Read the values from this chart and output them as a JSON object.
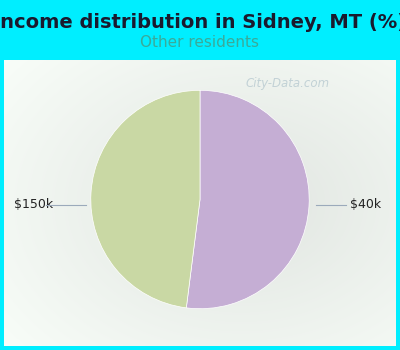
{
  "title": "Income distribution in Sidney, MT (%)",
  "subtitle": "Other residents",
  "title_color": "#1a1a2e",
  "subtitle_color": "#3aaa99",
  "background_color": "#00eeff",
  "plot_bg_color": "#e8f5ee",
  "slices": [
    {
      "label": "$40k",
      "value": 52,
      "color": "#c5aed4"
    },
    {
      "label": "$150k",
      "value": 48,
      "color": "#c9d8a4"
    }
  ],
  "label_color": "#222222",
  "label_fontsize": 9,
  "title_fontsize": 14,
  "subtitle_fontsize": 11,
  "watermark": "City-Data.com",
  "watermark_color": "#b0c4cc",
  "watermark_alpha": 0.7
}
